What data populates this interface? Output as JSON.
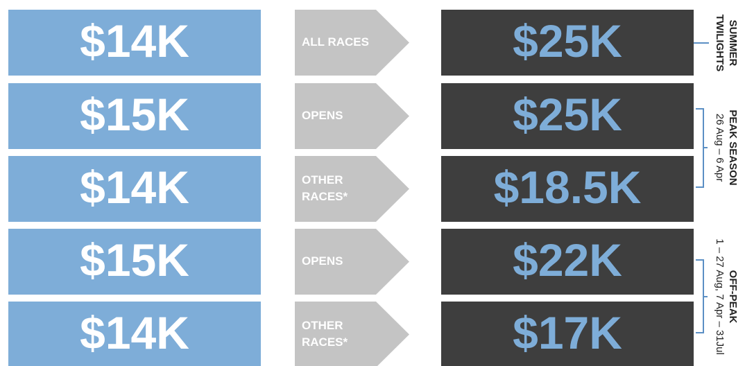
{
  "rows": [
    {
      "left": "$14K",
      "label": [
        "ALL RACES"
      ],
      "right": "$25K"
    },
    {
      "left": "$15K",
      "label": [
        "OPENS"
      ],
      "right": "$25K"
    },
    {
      "left": "$14K",
      "label": [
        "OTHER",
        "RACES*"
      ],
      "right": "$18.5K"
    },
    {
      "left": "$15K",
      "label": [
        "OPENS"
      ],
      "right": "$22K"
    },
    {
      "left": "$14K",
      "label": [
        "OTHER",
        "RACES*"
      ],
      "right": "$17K"
    }
  ],
  "groups": [
    {
      "lines": [
        "SUMMER",
        "TWILIGHTS"
      ]
    },
    {
      "lines": [
        "PEAK SEASON",
        "26 Aug – 6 Apr"
      ]
    },
    {
      "lines": [
        "OFF-PEAK",
        "1 – 27 Aug, 7 Apr – 31Jul"
      ]
    }
  ]
}
